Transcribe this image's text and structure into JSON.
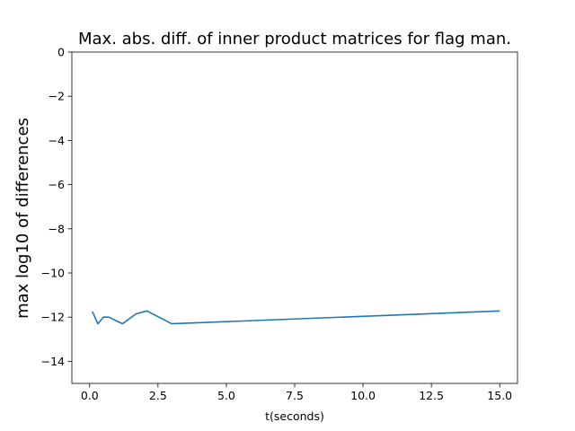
{
  "chart_data": {
    "type": "line",
    "title": "Max. abs. diff. of inner product matrices for flag man.",
    "xlabel": "t(seconds)",
    "ylabel": "max log10 of differences",
    "xlim": [
      -0.65,
      15.65
    ],
    "ylim": [
      -15,
      0
    ],
    "x_ticks": [
      0.0,
      2.5,
      5.0,
      7.5,
      10.0,
      12.5,
      15.0
    ],
    "x_tick_labels": [
      "0.0",
      "2.5",
      "5.0",
      "7.5",
      "10.0",
      "12.5",
      "15.0"
    ],
    "y_ticks": [
      0,
      -2,
      -4,
      -6,
      -8,
      -10,
      -12,
      -14
    ],
    "y_tick_labels": [
      "0",
      "−2",
      "−4",
      "−6",
      "−8",
      "−10",
      "−12",
      "−14"
    ],
    "grid": false,
    "series": [
      {
        "color": "#1f77b4",
        "x": [
          0.1,
          0.3,
          0.5,
          0.7,
          1.2,
          1.7,
          2.1,
          3.0,
          15.0
        ],
        "y": [
          -11.75,
          -12.3,
          -12.0,
          -12.0,
          -12.3,
          -11.85,
          -11.72,
          -12.3,
          -11.72
        ]
      }
    ]
  }
}
